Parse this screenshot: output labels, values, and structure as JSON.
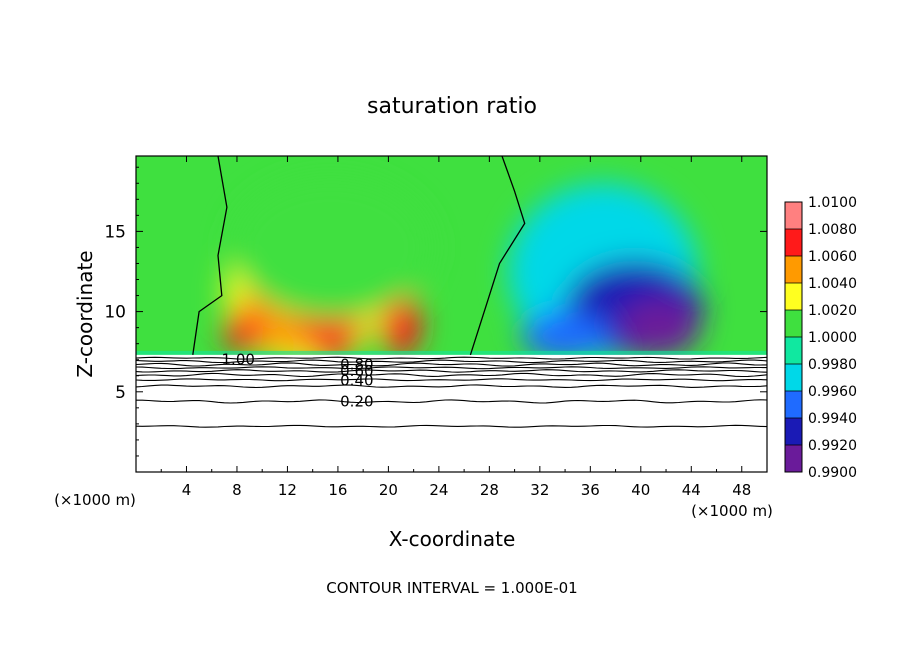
{
  "chart_data": {
    "type": "heatmap",
    "title": "saturation ratio",
    "xlabel": "X-coordinate",
    "ylabel": "Z-coordinate",
    "x_unit_note_left": "(×1000 m)",
    "x_unit_note_right": "(×1000 m)",
    "footer": "CONTOUR INTERVAL = 1.000E-01",
    "xlim": [
      0,
      50
    ],
    "ylim": [
      0,
      19.7
    ],
    "x_ticks": [
      4,
      8,
      12,
      16,
      20,
      24,
      28,
      32,
      36,
      40,
      44,
      48
    ],
    "x_tick_labels": [
      "4",
      "8",
      "12",
      "16",
      "20",
      "24",
      "28",
      "32",
      "36",
      "40",
      "44",
      "48"
    ],
    "y_ticks": [
      5,
      10,
      15
    ],
    "y_tick_labels": [
      "5",
      "10",
      "15"
    ],
    "grid": false,
    "colorbar": {
      "position": "right",
      "levels": [
        0.99,
        0.992,
        0.994,
        0.996,
        0.998,
        1.0,
        1.002,
        1.004,
        1.006,
        1.008,
        1.01
      ],
      "tick_labels": [
        "0.9900",
        "0.9920",
        "0.9940",
        "0.9960",
        "0.9980",
        "1.0000",
        "1.0020",
        "1.0040",
        "1.0060",
        "1.0080",
        "1.0100"
      ],
      "colors": [
        "#6a1b9a",
        "#1a1ab5",
        "#1f6bff",
        "#00d8e8",
        "#10e8a0",
        "#3fe03f",
        "#ffff20",
        "#ff9a00",
        "#ff1a1a",
        "#ff8080"
      ]
    },
    "surface_z": 7.3,
    "contour_labels": [
      {
        "label": "1.00",
        "x": 8.1,
        "z": 7.0
      },
      {
        "label": "0.80",
        "x": 17.5,
        "z": 6.7
      },
      {
        "label": "0.60",
        "x": 17.5,
        "z": 6.3
      },
      {
        "label": "0.40",
        "x": 17.5,
        "z": 5.7
      },
      {
        "label": "0.20",
        "x": 17.5,
        "z": 4.4
      }
    ],
    "contour_levels_below": [
      7.1,
      6.9,
      6.7,
      6.5,
      6.3,
      6.05,
      5.75,
      5.35,
      4.4,
      2.85
    ],
    "blobs": [
      {
        "x": 13.5,
        "z": 11.2,
        "rx": 6.5,
        "rz": 4.5,
        "value": 1.0025
      },
      {
        "x": 12.0,
        "z": 10.0,
        "rx": 3.8,
        "rz": 2.5,
        "value": 1.0045
      },
      {
        "x": 15.5,
        "z": 10.5,
        "rx": 2.6,
        "rz": 3.5,
        "value": 1.0065
      },
      {
        "x": 21.0,
        "z": 9.2,
        "rx": 1.6,
        "rz": 2.0,
        "value": 1.0062
      },
      {
        "x": 8.5,
        "z": 8.7,
        "rx": 1.6,
        "rz": 1.2,
        "value": 1.006
      },
      {
        "x": 15.5,
        "z": 14.0,
        "rx": 8.0,
        "rz": 4.5,
        "value": 1.0008
      },
      {
        "x": 37.0,
        "z": 12.5,
        "rx": 7.5,
        "rz": 5.5,
        "value": 0.9968
      },
      {
        "x": 39.5,
        "z": 10.2,
        "rx": 5.5,
        "rz": 3.0,
        "value": 0.9935
      },
      {
        "x": 41.5,
        "z": 9.0,
        "rx": 3.2,
        "rz": 1.8,
        "value": 0.9912
      },
      {
        "x": 34.0,
        "z": 8.5,
        "rx": 3.5,
        "rz": 1.5,
        "value": 0.9945
      }
    ],
    "contour_1_00_left": [
      [
        6.5,
        19.7
      ],
      [
        7.2,
        16.5
      ],
      [
        6.5,
        13.5
      ],
      [
        6.8,
        11.0
      ],
      [
        5.0,
        10.0
      ],
      [
        4.5,
        7.3
      ]
    ],
    "contour_1_00_right": [
      [
        29.0,
        19.7
      ],
      [
        30.0,
        17.5
      ],
      [
        30.8,
        15.5
      ],
      [
        28.8,
        13.0
      ],
      [
        27.8,
        10.5
      ],
      [
        26.5,
        7.3
      ]
    ]
  }
}
